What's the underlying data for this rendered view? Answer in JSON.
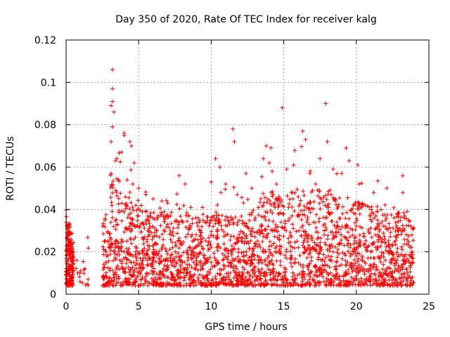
{
  "chart_data": {
    "type": "scatter",
    "title": "Day 350 of 2020, Rate Of TEC Index for receiver kalg",
    "xlabel": "GPS time / hours",
    "ylabel": "ROTI / TECUs",
    "xlim": [
      0,
      25
    ],
    "ylim": [
      0,
      0.12
    ],
    "x_ticks": [
      0,
      5,
      10,
      15,
      20,
      25
    ],
    "x_tick_labels": [
      "0",
      "5",
      "10",
      "15",
      "20",
      "25"
    ],
    "y_ticks": [
      0,
      0.02,
      0.04,
      0.06,
      0.08,
      0.1,
      0.12
    ],
    "y_tick_labels": [
      "0",
      "0.02",
      "0.04",
      "0.06",
      "0.08",
      "0.1",
      "0.12"
    ],
    "grid": true,
    "marker": "plus",
    "color": "#ff0000",
    "data_gap_hours": [
      1.6,
      2.5
    ],
    "x": [
      0.1,
      0.2,
      0.3,
      0.4,
      0.5,
      0.8,
      1.0,
      1.3,
      2.6,
      2.8,
      3.0,
      3.1,
      3.2,
      3.3,
      3.4,
      3.6,
      3.8,
      4.0,
      4.2,
      4.4,
      4.6,
      4.8,
      5.0,
      5.3,
      5.6,
      6.0,
      6.4,
      6.8,
      7.2,
      7.6,
      8.0,
      8.4,
      8.8,
      9.2,
      9.6,
      10.0,
      10.4,
      10.8,
      11.2,
      11.6,
      12.0,
      12.4,
      12.8,
      13.2,
      13.6,
      14.0,
      14.4,
      14.8,
      15.2,
      15.6,
      16.0,
      16.4,
      16.8,
      17.2,
      17.6,
      18.0,
      18.4,
      18.8,
      19.2,
      19.6,
      20.0,
      20.4,
      20.8,
      21.2,
      21.6,
      22.0,
      22.4,
      22.8,
      23.2,
      23.6,
      23.9
    ],
    "y": [
      0.012,
      0.014,
      0.013,
      0.012,
      0.011,
      0.01,
      0.011,
      0.012,
      0.014,
      0.018,
      0.022,
      0.026,
      0.024,
      0.02,
      0.022,
      0.024,
      0.022,
      0.02,
      0.02,
      0.019,
      0.018,
      0.018,
      0.019,
      0.017,
      0.016,
      0.016,
      0.017,
      0.016,
      0.016,
      0.015,
      0.015,
      0.016,
      0.015,
      0.015,
      0.015,
      0.015,
      0.016,
      0.016,
      0.015,
      0.016,
      0.015,
      0.015,
      0.016,
      0.018,
      0.02,
      0.021,
      0.02,
      0.019,
      0.02,
      0.022,
      0.022,
      0.022,
      0.021,
      0.021,
      0.021,
      0.021,
      0.02,
      0.019,
      0.019,
      0.018,
      0.018,
      0.018,
      0.017,
      0.017,
      0.017,
      0.016,
      0.016,
      0.016,
      0.016,
      0.016,
      0.015
    ],
    "outliers": [
      [
        3.2,
        0.106
      ],
      [
        3.2,
        0.097
      ],
      [
        3.2,
        0.091
      ],
      [
        3.1,
        0.089
      ],
      [
        3.3,
        0.086
      ],
      [
        3.2,
        0.079
      ],
      [
        3.1,
        0.072
      ],
      [
        3.5,
        0.064
      ],
      [
        3.4,
        0.063
      ],
      [
        4.0,
        0.076
      ],
      [
        4.0,
        0.075
      ],
      [
        4.4,
        0.072
      ],
      [
        4.5,
        0.07
      ],
      [
        4.7,
        0.062
      ],
      [
        4.2,
        0.054
      ],
      [
        4.6,
        0.052
      ],
      [
        5.0,
        0.05
      ],
      [
        5.5,
        0.047
      ],
      [
        6.0,
        0.045
      ],
      [
        6.6,
        0.044
      ],
      [
        7.0,
        0.043
      ],
      [
        7.8,
        0.056
      ],
      [
        8.2,
        0.052
      ],
      [
        8.6,
        0.041
      ],
      [
        9.4,
        0.041
      ],
      [
        10.0,
        0.053
      ],
      [
        10.3,
        0.064
      ],
      [
        10.6,
        0.06
      ],
      [
        11.0,
        0.052
      ],
      [
        11.5,
        0.078
      ],
      [
        11.6,
        0.072
      ],
      [
        11.8,
        0.047
      ],
      [
        12.4,
        0.057
      ],
      [
        12.8,
        0.05
      ],
      [
        13.6,
        0.064
      ],
      [
        13.8,
        0.07
      ],
      [
        14.0,
        0.062
      ],
      [
        14.2,
        0.058
      ],
      [
        14.5,
        0.052
      ],
      [
        14.9,
        0.088
      ],
      [
        15.2,
        0.059
      ],
      [
        15.6,
        0.048
      ],
      [
        16.0,
        0.046
      ],
      [
        16.3,
        0.077
      ],
      [
        16.5,
        0.073
      ],
      [
        16.8,
        0.057
      ],
      [
        17.2,
        0.052
      ],
      [
        17.5,
        0.064
      ],
      [
        17.9,
        0.09
      ],
      [
        18.0,
        0.072
      ],
      [
        18.4,
        0.059
      ],
      [
        19.0,
        0.057
      ],
      [
        19.3,
        0.069
      ],
      [
        19.5,
        0.063
      ],
      [
        19.8,
        0.042
      ],
      [
        20.1,
        0.061
      ],
      [
        20.2,
        0.052
      ],
      [
        20.6,
        0.042
      ],
      [
        21.2,
        0.048
      ],
      [
        21.7,
        0.04
      ],
      [
        22.1,
        0.05
      ],
      [
        22.6,
        0.036
      ],
      [
        23.2,
        0.048
      ],
      [
        23.5,
        0.039
      ]
    ]
  }
}
